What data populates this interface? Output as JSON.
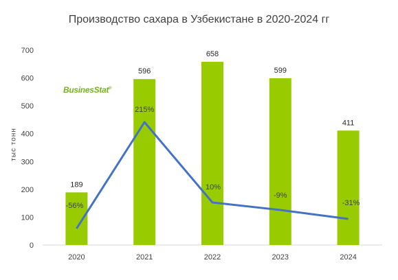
{
  "chart_data": {
    "type": "bar",
    "title": "Производство сахара в Узбекистане в 2020-2024 гг",
    "ylabel": "тыс тонн",
    "xlabel": "",
    "categories": [
      "2020",
      "2021",
      "2022",
      "2023",
      "2024"
    ],
    "values": [
      189,
      596,
      658,
      599,
      411
    ],
    "value_labels": [
      "189",
      "596",
      "658",
      "599",
      "411"
    ],
    "ylim": [
      0,
      700
    ],
    "yticks": [
      0,
      100,
      200,
      300,
      400,
      500,
      600,
      700
    ],
    "ytick_labels": [
      "0",
      "100",
      "200",
      "300",
      "400",
      "500",
      "600",
      "700"
    ],
    "grid": false,
    "bar_color": "#99cc00",
    "growth_series": {
      "values_percent": [
        -56,
        215,
        10,
        -9,
        -31
      ],
      "labels": [
        "-56%",
        "215%",
        "10%",
        "-9%",
        "-31%"
      ],
      "line_color": "#4472c4"
    }
  },
  "branding": {
    "logo_text": "BusinesStat",
    "logo_mark": "®",
    "logo_color": "#73b51d"
  }
}
